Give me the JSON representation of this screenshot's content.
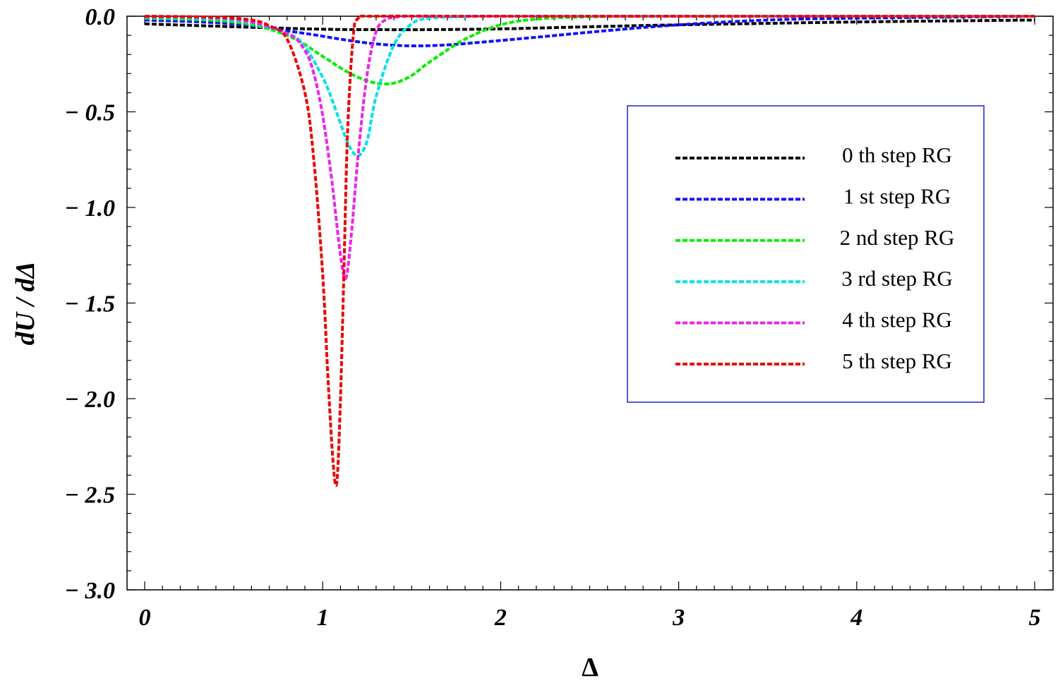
{
  "chart_data": {
    "type": "line",
    "title": "",
    "xlabel": "Δ",
    "ylabel": "dU / dΔ",
    "xlim": [
      0,
      5
    ],
    "ylim": [
      -3.0,
      0.0
    ],
    "x_ticks": [
      0,
      1,
      2,
      3,
      4,
      5
    ],
    "y_ticks": [
      0.0,
      -0.5,
      -1.0,
      -1.5,
      -2.0,
      -2.5,
      -3.0
    ],
    "x_tick_labels": [
      "0",
      "1",
      "2",
      "3",
      "4",
      "5"
    ],
    "y_tick_labels": [
      "0.0",
      "− 0.5",
      "− 1.0",
      "− 1.5",
      "− 2.0",
      "− 2.5",
      "− 3.0"
    ],
    "grid": false,
    "legend_position": "right",
    "line_style": "dashed",
    "series": [
      {
        "name": "0 th step RG",
        "color": "#000000",
        "x": [
          0,
          0.5,
          1.0,
          1.3,
          1.6,
          2.0,
          2.5,
          3.0,
          4.0,
          5.0
        ],
        "y": [
          -0.04,
          -0.055,
          -0.068,
          -0.07,
          -0.07,
          -0.066,
          -0.055,
          -0.045,
          -0.03,
          -0.02
        ]
      },
      {
        "name": "1 st step RG",
        "color": "#1010ff",
        "x": [
          0,
          0.5,
          0.9,
          1.1,
          1.3,
          1.5,
          1.7,
          1.9,
          2.2,
          2.6,
          3.0,
          3.5,
          4.0,
          5.0
        ],
        "y": [
          -0.02,
          -0.04,
          -0.09,
          -0.12,
          -0.145,
          -0.155,
          -0.15,
          -0.135,
          -0.11,
          -0.075,
          -0.045,
          -0.02,
          -0.01,
          0.0
        ]
      },
      {
        "name": "2 nd step RG",
        "color": "#00ee00",
        "x": [
          0,
          0.5,
          0.8,
          1.0,
          1.1,
          1.2,
          1.3,
          1.4,
          1.5,
          1.6,
          1.8,
          2.0,
          2.2,
          2.5,
          3.0,
          5.0
        ],
        "y": [
          -0.01,
          -0.03,
          -0.1,
          -0.21,
          -0.27,
          -0.32,
          -0.35,
          -0.35,
          -0.31,
          -0.24,
          -0.12,
          -0.045,
          -0.015,
          -0.003,
          0.0,
          0.0
        ]
      },
      {
        "name": "3 rd step RG",
        "color": "#00e0e8",
        "x": [
          0,
          0.5,
          0.8,
          0.9,
          1.0,
          1.05,
          1.1,
          1.15,
          1.2,
          1.25,
          1.3,
          1.4,
          1.5,
          1.6,
          1.8,
          2.0,
          5.0
        ],
        "y": [
          -0.005,
          -0.02,
          -0.09,
          -0.16,
          -0.32,
          -0.43,
          -0.56,
          -0.68,
          -0.73,
          -0.65,
          -0.42,
          -0.15,
          -0.04,
          -0.01,
          -0.002,
          0.0,
          0.0
        ]
      },
      {
        "name": "4 th step RG",
        "color": "#ee22ee",
        "x": [
          0,
          0.5,
          0.8,
          0.9,
          0.95,
          1.0,
          1.05,
          1.1,
          1.13,
          1.16,
          1.2,
          1.25,
          1.3,
          1.35,
          1.4,
          1.5,
          2.0,
          5.0
        ],
        "y": [
          -0.003,
          -0.015,
          -0.09,
          -0.18,
          -0.3,
          -0.52,
          -0.85,
          -1.25,
          -1.37,
          -1.15,
          -0.72,
          -0.3,
          -0.08,
          -0.02,
          -0.006,
          0.0,
          0.0,
          0.0
        ]
      },
      {
        "name": "5 th step RG",
        "color": "#ee0000",
        "x": [
          0,
          0.4,
          0.6,
          0.7,
          0.8,
          0.9,
          0.95,
          1.0,
          1.03,
          1.06,
          1.08,
          1.1,
          1.12,
          1.14,
          1.17,
          1.2,
          1.3,
          2.0,
          5.0
        ],
        "y": [
          0.0,
          -0.005,
          -0.02,
          -0.05,
          -0.12,
          -0.4,
          -0.75,
          -1.35,
          -1.9,
          -2.35,
          -2.43,
          -2.0,
          -1.3,
          -0.6,
          -0.12,
          -0.01,
          0.0,
          0.0,
          0.0
        ]
      }
    ]
  }
}
